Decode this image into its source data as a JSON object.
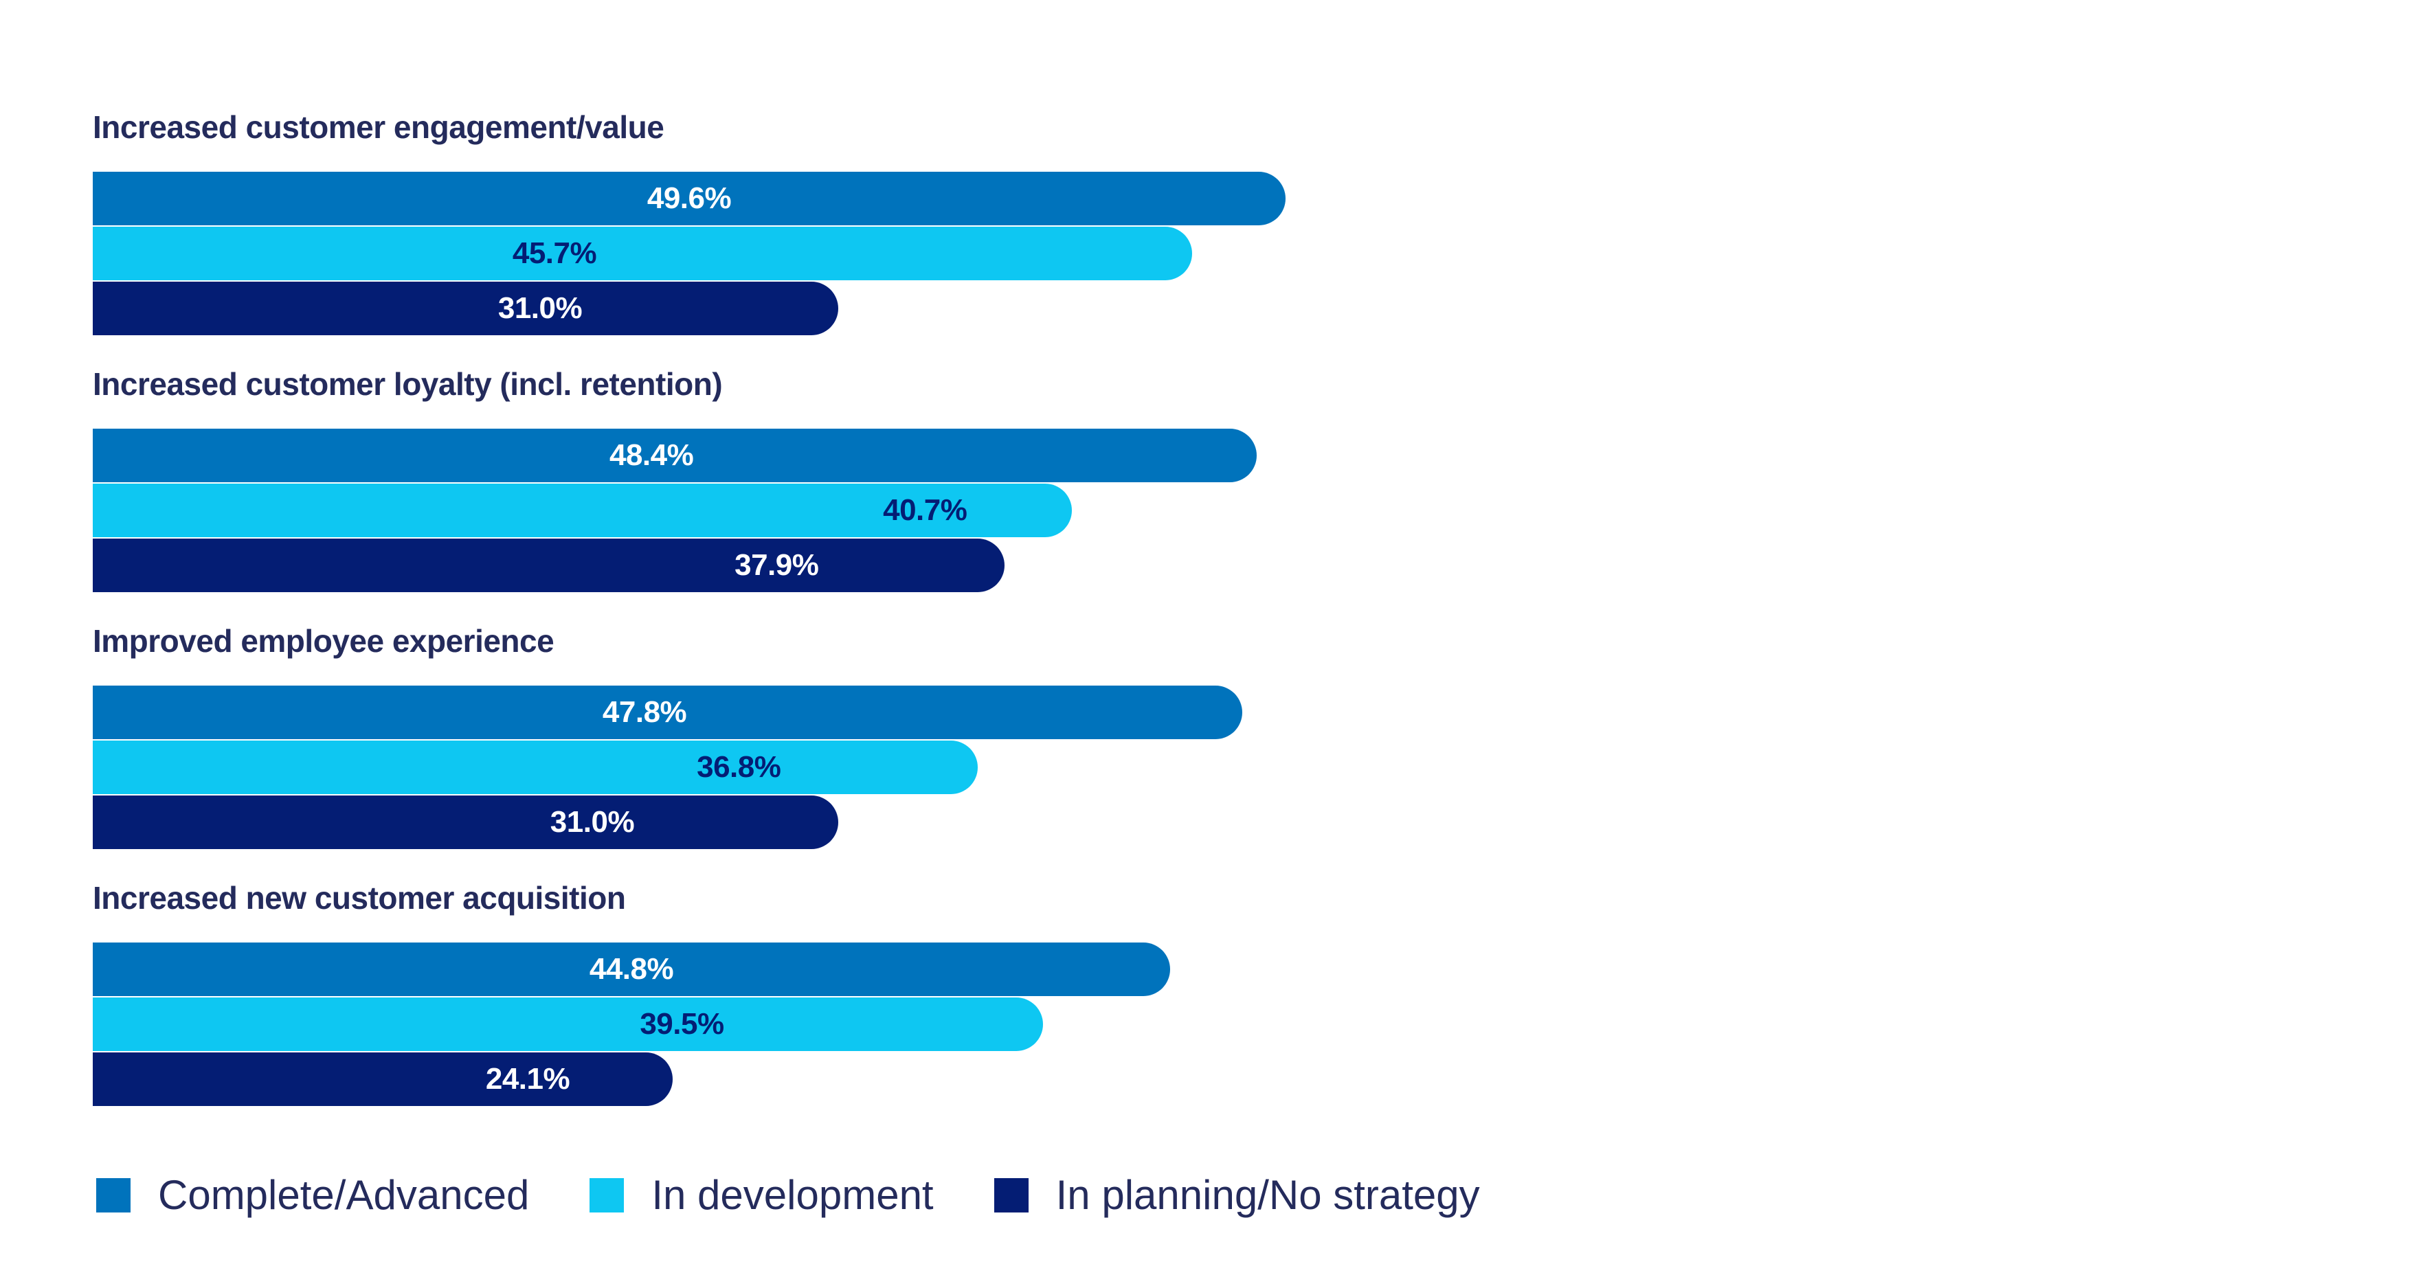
{
  "page": {
    "background": "#FFFFFF",
    "ink_color": "#242B5C"
  },
  "chart_data": {
    "type": "bar",
    "orientation": "horizontal",
    "title": "",
    "xlabel": "",
    "ylabel": "",
    "categories": [
      "Increased customer engagement/value",
      "Increased customer loyalty (incl. retention)",
      "Improved employee experience",
      "Increased new customer acquisition"
    ],
    "series": [
      {
        "name": "Complete/Advanced",
        "color": "#0073BC",
        "label_color": "#FFFFFF",
        "values": [
          49.6,
          48.4,
          47.8,
          44.8
        ]
      },
      {
        "name": "In development",
        "color": "#0EC7F2",
        "label_color": "#041D74",
        "values": [
          45.7,
          40.7,
          36.8,
          39.5
        ]
      },
      {
        "name": "In planning/No strategy",
        "color": "#041D74",
        "label_color": "#FFFFFF",
        "values": [
          31.0,
          37.9,
          31.0,
          24.1
        ]
      }
    ],
    "value_labels": [
      [
        "49.6%",
        "45.7%",
        "31.0%"
      ],
      [
        "48.4%",
        "40.7%",
        "37.9%"
      ],
      [
        "47.8%",
        "36.8%",
        "31.0%"
      ],
      [
        "44.8%",
        "39.5%",
        "24.1%"
      ]
    ],
    "value_label_format": "{value}%",
    "layout_hints": {
      "value_axis_visible": false,
      "value_axis_max": 55,
      "grid": false,
      "legend_position": "bottom",
      "bar_ends": "rounded-right",
      "bars_share_left_baseline": true,
      "label_position_fraction": [
        [
          0.5,
          0.42,
          0.6
        ],
        [
          0.48,
          0.85,
          0.75
        ],
        [
          0.48,
          0.73,
          0.67
        ],
        [
          0.5,
          0.62,
          0.75
        ]
      ]
    }
  }
}
